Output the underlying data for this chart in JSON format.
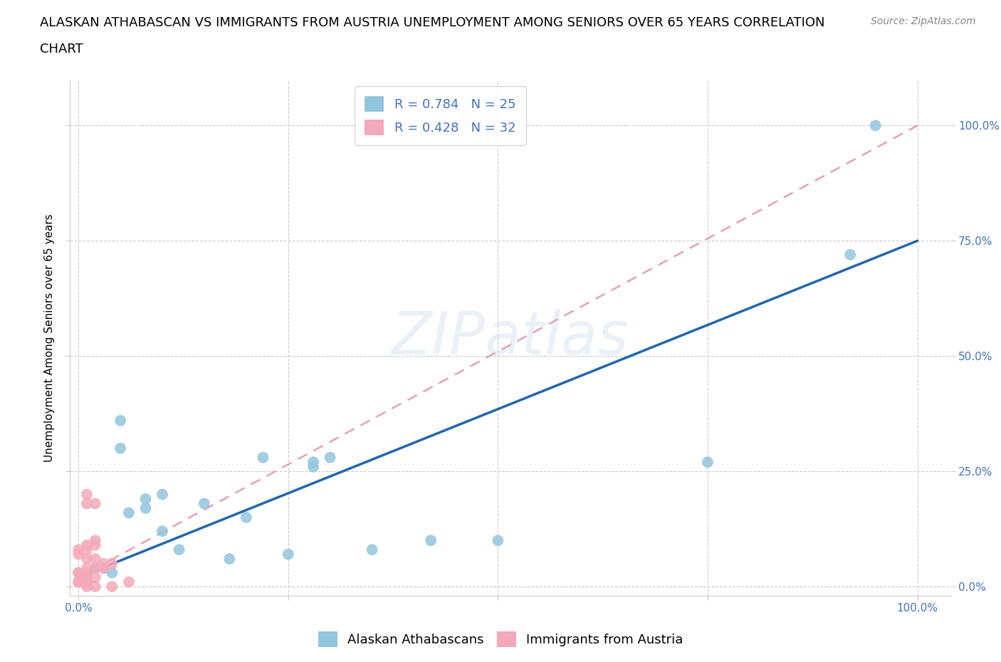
{
  "title_line1": "ALASKAN ATHABASCAN VS IMMIGRANTS FROM AUSTRIA UNEMPLOYMENT AMONG SENIORS OVER 65 YEARS CORRELATION",
  "title_line2": "CHART",
  "source": "Source: ZipAtlas.com",
  "ylabel": "Unemployment Among Seniors over 65 years",
  "watermark": "ZIPatlas",
  "legend_labels": [
    "Alaskan Athabascans",
    "Immigrants from Austria"
  ],
  "r_blue": 0.784,
  "n_blue": 25,
  "r_pink": 0.428,
  "n_pink": 32,
  "blue_color": "#92c5de",
  "pink_color": "#f4a9b8",
  "blue_line_color": "#2166ac",
  "pink_line_color": "#e8a0b0",
  "blue_scatter_x": [
    0.95,
    0.92,
    0.05,
    0.05,
    0.08,
    0.22,
    0.28,
    0.3,
    0.5,
    0.28,
    0.18,
    0.1,
    0.02,
    0.03,
    0.06,
    0.75,
    0.08,
    0.12,
    0.15,
    0.2,
    0.35,
    0.42,
    0.04,
    0.1,
    0.25
  ],
  "blue_scatter_y": [
    1.0,
    0.72,
    0.36,
    0.3,
    0.19,
    0.28,
    0.26,
    0.28,
    0.1,
    0.27,
    0.06,
    0.2,
    0.04,
    0.04,
    0.16,
    0.27,
    0.17,
    0.08,
    0.18,
    0.15,
    0.08,
    0.1,
    0.03,
    0.12,
    0.07
  ],
  "pink_scatter_x": [
    0.01,
    0.01,
    0.02,
    0.02,
    0.02,
    0.01,
    0.01,
    0.0,
    0.0,
    0.01,
    0.02,
    0.03,
    0.04,
    0.03,
    0.02,
    0.01,
    0.01,
    0.0,
    0.0,
    0.01,
    0.02,
    0.01,
    0.01,
    0.0,
    0.01,
    0.01,
    0.0,
    0.01,
    0.06,
    0.04,
    0.02,
    0.01
  ],
  "pink_scatter_y": [
    0.2,
    0.18,
    0.18,
    0.1,
    0.09,
    0.09,
    0.08,
    0.08,
    0.07,
    0.06,
    0.06,
    0.05,
    0.05,
    0.04,
    0.04,
    0.04,
    0.03,
    0.03,
    0.03,
    0.02,
    0.02,
    0.02,
    0.02,
    0.01,
    0.01,
    0.01,
    0.01,
    0.01,
    0.01,
    0.0,
    0.0,
    0.0
  ],
  "blue_line_x": [
    0.0,
    1.0
  ],
  "blue_line_y": [
    0.02,
    0.75
  ],
  "pink_line_x": [
    0.0,
    1.0
  ],
  "pink_line_y": [
    0.02,
    1.0
  ],
  "xlim": [
    -0.01,
    1.04
  ],
  "ylim": [
    -0.02,
    1.1
  ],
  "xtick_positions": [
    0.0,
    0.25,
    0.5,
    0.75,
    1.0
  ],
  "xtick_labels": [
    "0.0%",
    "",
    "",
    "",
    "100.0%"
  ],
  "ytick_positions": [
    0.0,
    0.25,
    0.5,
    0.75,
    1.0
  ],
  "ytick_labels_right": [
    "0.0%",
    "25.0%",
    "50.0%",
    "75.0%",
    "100.0%"
  ],
  "grid_color": "#cccccc",
  "background_color": "#ffffff",
  "title_fontsize": 13,
  "axis_label_fontsize": 11,
  "tick_fontsize": 11,
  "legend_fontsize": 13,
  "source_fontsize": 10
}
